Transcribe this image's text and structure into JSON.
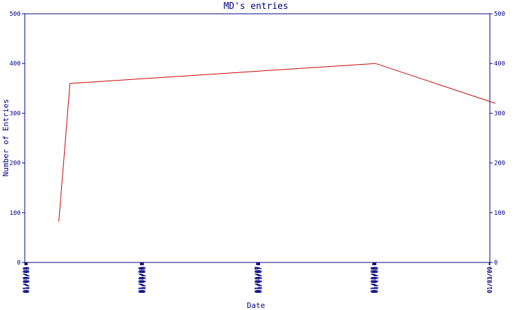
{
  "chart_data": {
    "type": "line",
    "title": "MD's entries",
    "xlabel": "Date",
    "ylabel": "Number of Entries",
    "ylim": [
      0,
      500
    ],
    "y_ticks": [
      0,
      100,
      200,
      300,
      400,
      500
    ],
    "y_ticks_right": true,
    "x_ticks": [
      "01/03/05",
      "01/05/05",
      "01/07/05",
      "01/09/05",
      "01/11/05",
      "01/01/06",
      "01/03/06",
      "01/05/06",
      "01/07/06",
      "01/09/06",
      "01/11/06",
      "01/01/07",
      "01/03/07",
      "01/05/07",
      "01/07/07",
      "01/09/07",
      "01/11/07",
      "01/01/08",
      "01/03/08",
      "01/05/08",
      "01/07/08",
      "01/09/08",
      "01/11/08",
      "01/01/09",
      "01/03/09"
    ],
    "grid": false,
    "colors": {
      "axis": "#000080",
      "series": "#cc0000"
    },
    "series": [
      {
        "points": [
          {
            "x": "2005-04-20",
            "y": 82
          },
          {
            "x": "2005-05-25",
            "y": 360
          },
          {
            "x": "2008-01-10",
            "y": 400
          },
          {
            "x": "2009-01-20",
            "y": 320
          }
        ]
      }
    ]
  }
}
